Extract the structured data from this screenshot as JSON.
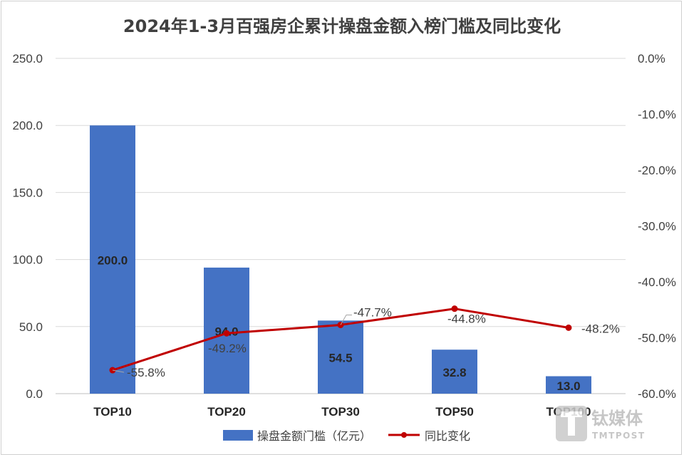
{
  "chart_data": {
    "type": "bar",
    "title": "2024年1-3月百强房企累计操盘金额入榜门槛及同比变化",
    "categories": [
      "TOP10",
      "TOP20",
      "TOP30",
      "TOP50",
      "TOP100"
    ],
    "series": [
      {
        "name": "操盘金额门槛（亿元）",
        "type": "bar",
        "axis": "left",
        "color": "#4472C4",
        "values": [
          200.0,
          94.0,
          54.5,
          32.8,
          13.0
        ],
        "labels": [
          "200.0",
          "94.0",
          "54.5",
          "32.8",
          "13.0"
        ]
      },
      {
        "name": "同比变化",
        "type": "line",
        "axis": "right",
        "color": "#C00000",
        "values": [
          -55.8,
          -49.2,
          -47.7,
          -44.8,
          -48.2
        ],
        "labels": [
          "-55.8%",
          "-49.2%",
          "-47.7%",
          "-44.8%",
          "-48.2%"
        ]
      }
    ],
    "y_left": {
      "min": 0,
      "max": 250,
      "step": 50,
      "ticks": [
        "0.0",
        "50.0",
        "100.0",
        "150.0",
        "200.0",
        "250.0"
      ]
    },
    "y_right": {
      "min": -60,
      "max": 0,
      "step": 10,
      "ticks": [
        "-60.0%",
        "-50.0%",
        "-40.0%",
        "-30.0%",
        "-20.0%",
        "-10.0%",
        "0.0%"
      ]
    },
    "grid": true,
    "legend_position": "bottom"
  },
  "watermark": {
    "cn": "钛媒体",
    "en": "TMTPOST"
  }
}
